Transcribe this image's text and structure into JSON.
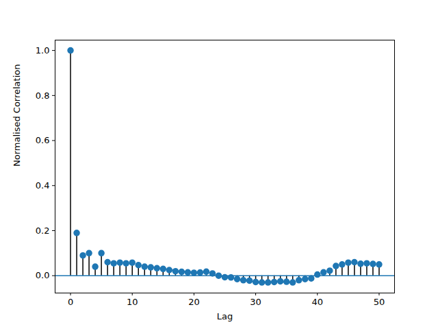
{
  "chart_data": {
    "type": "stem",
    "x_label": "Lag",
    "y_label": "Normalised Correlation",
    "x": [
      0,
      1,
      2,
      3,
      4,
      5,
      6,
      7,
      8,
      9,
      10,
      11,
      12,
      13,
      14,
      15,
      16,
      17,
      18,
      19,
      20,
      21,
      22,
      23,
      24,
      25,
      26,
      27,
      28,
      29,
      30,
      31,
      32,
      33,
      34,
      35,
      36,
      37,
      38,
      39,
      40,
      41,
      42,
      43,
      44,
      45,
      46,
      47,
      48,
      49,
      50
    ],
    "values": [
      1.0,
      0.19,
      0.09,
      0.1,
      0.04,
      0.1,
      0.06,
      0.055,
      0.058,
      0.055,
      0.058,
      0.047,
      0.04,
      0.037,
      0.033,
      0.03,
      0.025,
      0.02,
      0.017,
      0.015,
      0.013,
      0.014,
      0.018,
      0.01,
      0.0,
      -0.007,
      -0.008,
      -0.015,
      -0.02,
      -0.022,
      -0.028,
      -0.03,
      -0.03,
      -0.028,
      -0.025,
      -0.027,
      -0.03,
      -0.02,
      -0.015,
      -0.012,
      0.005,
      0.015,
      0.022,
      0.043,
      0.05,
      0.058,
      0.06,
      0.053,
      0.055,
      0.052,
      0.05
    ],
    "color": "#1f77b4",
    "hlines": [
      0
    ],
    "xlim": [
      -2.5,
      52.5
    ],
    "xticks": [
      0,
      10,
      20,
      30,
      40,
      50
    ],
    "ylim": [
      -0.077,
      1.046
    ],
    "yticks": [
      {
        "value": 0,
        "label": "0.0"
      },
      {
        "value": 0.2,
        "label": "0.2"
      },
      {
        "value": 0.4,
        "label": "0.4"
      },
      {
        "value": 0.6,
        "label": "0.6"
      },
      {
        "value": 0.8,
        "label": "0.8"
      },
      {
        "value": 1,
        "label": "1.0"
      }
    ],
    "grid": false
  }
}
